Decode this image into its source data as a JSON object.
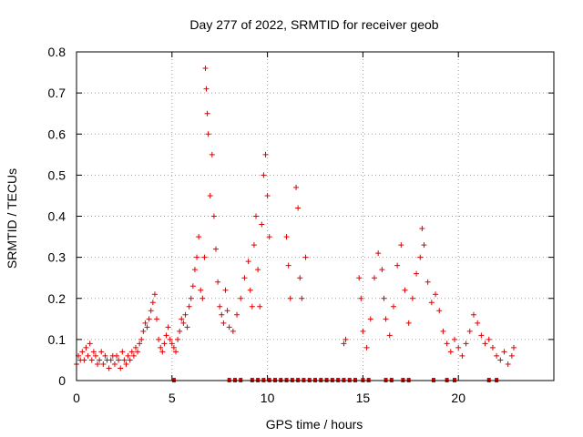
{
  "chart_data": {
    "type": "scatter",
    "title": "Day 277 of 2022, SRMTID for receiver geob",
    "xlabel": "GPS time / hours",
    "ylabel": "SRMTID / TECUs",
    "xlim": [
      0,
      25
    ],
    "ylim": [
      0,
      0.8
    ],
    "xticks": [
      0,
      5,
      10,
      15,
      20
    ],
    "yticks": [
      0,
      0.1,
      0.2,
      0.3,
      0.4,
      0.5,
      0.6,
      0.7,
      0.8
    ],
    "x_tick_labels": [
      "0",
      "5",
      "10",
      "15",
      "20"
    ],
    "y_tick_labels": [
      "0",
      "0.1",
      "0.2",
      "0.3",
      "0.4",
      "0.5",
      "0.6",
      "0.7",
      "0.8"
    ],
    "grid": true,
    "marker": "+",
    "color": "#e00000",
    "series": [
      {
        "name": "SRMTID",
        "points": [
          [
            0.0,
            0.04
          ],
          [
            0.1,
            0.06
          ],
          [
            0.2,
            0.05
          ],
          [
            0.3,
            0.07
          ],
          [
            0.4,
            0.05
          ],
          [
            0.5,
            0.08
          ],
          [
            0.6,
            0.06
          ],
          [
            0.7,
            0.09
          ],
          [
            0.8,
            0.05
          ],
          [
            0.9,
            0.07
          ],
          [
            1.0,
            0.06
          ],
          [
            1.1,
            0.04
          ],
          [
            1.2,
            0.05
          ],
          [
            1.3,
            0.07
          ],
          [
            1.4,
            0.04
          ],
          [
            1.5,
            0.06
          ],
          [
            1.6,
            0.05
          ],
          [
            1.7,
            0.03
          ],
          [
            1.8,
            0.05
          ],
          [
            1.9,
            0.06
          ],
          [
            2.0,
            0.04
          ],
          [
            2.1,
            0.06
          ],
          [
            2.2,
            0.05
          ],
          [
            2.3,
            0.03
          ],
          [
            2.4,
            0.07
          ],
          [
            2.5,
            0.05
          ],
          [
            2.6,
            0.04
          ],
          [
            2.7,
            0.06
          ],
          [
            2.8,
            0.05
          ],
          [
            2.9,
            0.07
          ],
          [
            3.0,
            0.06
          ],
          [
            3.1,
            0.08
          ],
          [
            3.2,
            0.07
          ],
          [
            3.3,
            0.09
          ],
          [
            3.4,
            0.1
          ],
          [
            3.5,
            0.12
          ],
          [
            3.6,
            0.14
          ],
          [
            3.7,
            0.13
          ],
          [
            3.8,
            0.15
          ],
          [
            3.9,
            0.17
          ],
          [
            4.0,
            0.19
          ],
          [
            4.1,
            0.21
          ],
          [
            4.2,
            0.15
          ],
          [
            4.3,
            0.1
          ],
          [
            4.4,
            0.08
          ],
          [
            4.5,
            0.07
          ],
          [
            4.6,
            0.09
          ],
          [
            4.7,
            0.11
          ],
          [
            4.8,
            0.13
          ],
          [
            4.9,
            0.1
          ],
          [
            5.0,
            0.09
          ],
          [
            5.1,
            0.08
          ],
          [
            5.2,
            0.07
          ],
          [
            5.3,
            0.1
          ],
          [
            5.4,
            0.12
          ],
          [
            5.5,
            0.15
          ],
          [
            5.6,
            0.14
          ],
          [
            5.7,
            0.16
          ],
          [
            5.8,
            0.13
          ],
          [
            5.9,
            0.18
          ],
          [
            6.0,
            0.2
          ],
          [
            6.1,
            0.23
          ],
          [
            6.2,
            0.27
          ],
          [
            6.3,
            0.3
          ],
          [
            6.4,
            0.35
          ],
          [
            6.5,
            0.22
          ],
          [
            6.6,
            0.2
          ],
          [
            6.7,
            0.3
          ],
          [
            6.75,
            0.76
          ],
          [
            6.8,
            0.71
          ],
          [
            6.85,
            0.65
          ],
          [
            6.9,
            0.6
          ],
          [
            7.0,
            0.45
          ],
          [
            7.1,
            0.55
          ],
          [
            7.2,
            0.4
          ],
          [
            7.3,
            0.32
          ],
          [
            7.4,
            0.24
          ],
          [
            7.5,
            0.18
          ],
          [
            7.6,
            0.16
          ],
          [
            7.7,
            0.14
          ],
          [
            7.8,
            0.22
          ],
          [
            7.9,
            0.17
          ],
          [
            8.0,
            0.13
          ],
          [
            8.2,
            0.12
          ],
          [
            8.4,
            0.16
          ],
          [
            8.6,
            0.2
          ],
          [
            8.8,
            0.25
          ],
          [
            9.0,
            0.29
          ],
          [
            9.1,
            0.22
          ],
          [
            9.2,
            0.18
          ],
          [
            9.3,
            0.33
          ],
          [
            9.4,
            0.4
          ],
          [
            9.5,
            0.27
          ],
          [
            9.6,
            0.18
          ],
          [
            9.7,
            0.38
          ],
          [
            9.8,
            0.5
          ],
          [
            9.9,
            0.55
          ],
          [
            10.0,
            0.45
          ],
          [
            10.1,
            0.35
          ],
          [
            11.0,
            0.35
          ],
          [
            11.1,
            0.28
          ],
          [
            11.2,
            0.2
          ],
          [
            11.5,
            0.47
          ],
          [
            11.6,
            0.42
          ],
          [
            11.7,
            0.25
          ],
          [
            11.8,
            0.2
          ],
          [
            12.0,
            0.3
          ],
          [
            14.0,
            0.09
          ],
          [
            14.1,
            0.1
          ],
          [
            14.8,
            0.25
          ],
          [
            14.9,
            0.2
          ],
          [
            15.0,
            0.12
          ],
          [
            15.2,
            0.08
          ],
          [
            15.4,
            0.15
          ],
          [
            15.6,
            0.25
          ],
          [
            15.8,
            0.31
          ],
          [
            16.0,
            0.27
          ],
          [
            16.1,
            0.2
          ],
          [
            16.2,
            0.15
          ],
          [
            16.4,
            0.11
          ],
          [
            16.6,
            0.18
          ],
          [
            16.8,
            0.28
          ],
          [
            17.0,
            0.33
          ],
          [
            17.2,
            0.22
          ],
          [
            17.4,
            0.14
          ],
          [
            17.6,
            0.2
          ],
          [
            17.8,
            0.26
          ],
          [
            18.0,
            0.3
          ],
          [
            18.1,
            0.37
          ],
          [
            18.2,
            0.33
          ],
          [
            18.4,
            0.24
          ],
          [
            18.6,
            0.19
          ],
          [
            18.8,
            0.21
          ],
          [
            19.0,
            0.17
          ],
          [
            19.2,
            0.12
          ],
          [
            19.4,
            0.09
          ],
          [
            19.6,
            0.07
          ],
          [
            19.8,
            0.1
          ],
          [
            20.0,
            0.08
          ],
          [
            20.2,
            0.06
          ],
          [
            20.4,
            0.09
          ],
          [
            20.6,
            0.12
          ],
          [
            20.8,
            0.16
          ],
          [
            21.0,
            0.14
          ],
          [
            21.2,
            0.11
          ],
          [
            21.4,
            0.09
          ],
          [
            21.6,
            0.1
          ],
          [
            21.8,
            0.08
          ],
          [
            22.0,
            0.06
          ],
          [
            22.2,
            0.05
          ],
          [
            22.4,
            0.07
          ],
          [
            22.6,
            0.04
          ],
          [
            22.8,
            0.06
          ],
          [
            22.9,
            0.08
          ]
        ]
      }
    ],
    "gap_markers_y": 0,
    "gap_markers_x": [
      5.1,
      8.0,
      8.3,
      8.6,
      9.2,
      9.5,
      9.8,
      10.1,
      10.4,
      10.7,
      11.0,
      11.3,
      11.6,
      11.9,
      12.2,
      12.5,
      12.8,
      13.1,
      13.4,
      13.7,
      14.0,
      14.3,
      14.6,
      15.0,
      15.3,
      16.2,
      16.5,
      17.1,
      17.4,
      18.7,
      19.4,
      19.8,
      21.6,
      22.0
    ]
  }
}
